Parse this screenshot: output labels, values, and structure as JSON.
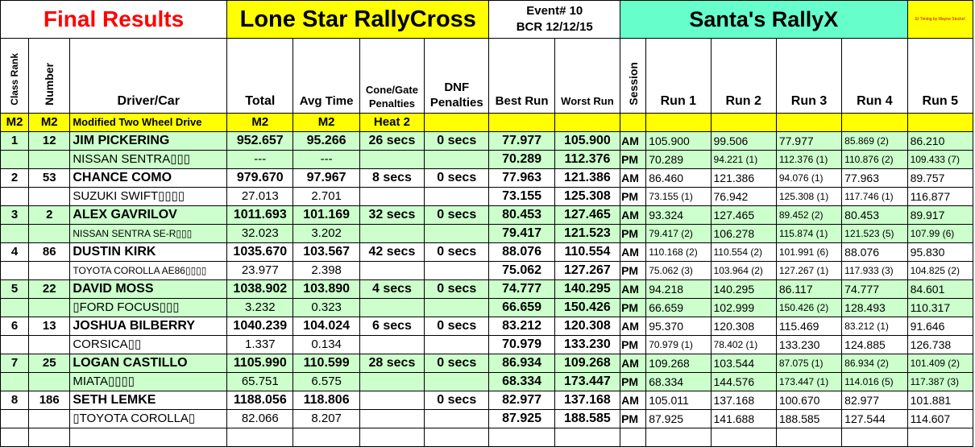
{
  "header": {
    "final_results": "Final Results",
    "series": "Lone Star RallyCross",
    "event_line1": "Event# 10",
    "event_line2": "BCR 12/12/15",
    "event_name": "Santa's RallyX",
    "timing_credit": "El Timing by Wayne Stockel"
  },
  "columns": {
    "class_rank": "Class Rank",
    "number": "Number",
    "driver_car": "Driver/Car",
    "total": "Total",
    "avg_time": "Avg Time",
    "cone_gate_1": "Cone/Gate",
    "cone_gate_2": "Penalties",
    "dnf_1": "DNF",
    "dnf_2": "Penalties",
    "best_run": "Best Run",
    "worst_run": "Worst Run",
    "session": "Session",
    "run1": "Run 1",
    "run2": "Run 2",
    "run3": "Run 3",
    "run4": "Run 4",
    "run5": "Run 5"
  },
  "class_row": {
    "rank": "M2",
    "number": "M2",
    "name": "Modified Two Wheel Drive",
    "total": "M2",
    "avg": "M2",
    "heat": "Heat 2"
  },
  "drivers": [
    {
      "rank": "1",
      "number": "12",
      "name": "JIM PICKERING",
      "car": "NISSAN SENTRA▯▯▯",
      "total": "952.657",
      "avg": "95.266",
      "cone": "26 secs",
      "dnf": "0 secs",
      "diff_total": "---",
      "diff_avg": "---",
      "am": {
        "best": "77.977",
        "worst": "105.900",
        "session": "AM",
        "runs": [
          "105.900",
          "99.506",
          "77.977",
          "85.869 (2)",
          "86.210"
        ]
      },
      "pm": {
        "best": "70.289",
        "worst": "112.376",
        "session": "PM",
        "runs": [
          "70.289",
          "94.221 (1)",
          "112.376 (1)",
          "110.876 (2)",
          "109.433 (7)"
        ]
      }
    },
    {
      "rank": "2",
      "number": "53",
      "name": "CHANCE COMO",
      "car": "SUZUKI SWIFT▯▯▯▯",
      "total": "979.670",
      "avg": "97.967",
      "cone": "8 secs",
      "dnf": "0 secs",
      "diff_total": "27.013",
      "diff_avg": "2.701",
      "am": {
        "best": "77.963",
        "worst": "121.386",
        "session": "AM",
        "runs": [
          "86.460",
          "121.386",
          "94.076 (1)",
          "77.963",
          "89.757"
        ]
      },
      "pm": {
        "best": "73.155",
        "worst": "125.308",
        "session": "PM",
        "runs": [
          "73.155 (1)",
          "76.942",
          "125.308 (1)",
          "117.746 (1)",
          "116.877"
        ]
      }
    },
    {
      "rank": "3",
      "number": "2",
      "name": "ALEX GAVRILOV",
      "car": "NISSAN SENTRA SE-R▯▯▯",
      "total": "1011.693",
      "avg": "101.169",
      "cone": "32 secs",
      "dnf": "0 secs",
      "diff_total": "32.023",
      "diff_avg": "3.202",
      "am": {
        "best": "80.453",
        "worst": "127.465",
        "session": "AM",
        "runs": [
          "93.324",
          "127.465",
          "89.452 (2)",
          "80.453",
          "89.917"
        ]
      },
      "pm": {
        "best": "79.417",
        "worst": "121.523",
        "session": "PM",
        "runs": [
          "79.417 (2)",
          "106.278",
          "115.874 (1)",
          "121.523 (5)",
          "107.99 (6)"
        ]
      }
    },
    {
      "rank": "4",
      "number": "86",
      "name": "DUSTIN KIRK",
      "car": "TOYOTA COROLLA AE86▯▯▯▯",
      "total": "1035.670",
      "avg": "103.567",
      "cone": "42 secs",
      "dnf": "0 secs",
      "diff_total": "23.977",
      "diff_avg": "2.398",
      "am": {
        "best": "88.076",
        "worst": "110.554",
        "session": "AM",
        "runs": [
          "110.168 (2)",
          "110.554 (2)",
          "101.991 (6)",
          "88.076",
          "95.830"
        ]
      },
      "pm": {
        "best": "75.062",
        "worst": "127.267",
        "session": "PM",
        "runs": [
          "75.062 (3)",
          "103.964 (2)",
          "127.267 (1)",
          "117.933 (3)",
          "104.825 (2)"
        ]
      }
    },
    {
      "rank": "5",
      "number": "22",
      "name": "DAVID MOSS",
      "car": "▯FORD FOCUS▯▯▯",
      "total": "1038.902",
      "avg": "103.890",
      "cone": "4 secs",
      "dnf": "0 secs",
      "diff_total": "3.232",
      "diff_avg": "0.323",
      "am": {
        "best": "74.777",
        "worst": "140.295",
        "session": "AM",
        "runs": [
          "94.218",
          "140.295",
          "86.117",
          "74.777",
          "84.601"
        ]
      },
      "pm": {
        "best": "66.659",
        "worst": "150.426",
        "session": "PM",
        "runs": [
          "66.659",
          "102.999",
          "150.426 (2)",
          "128.493",
          "110.317"
        ]
      }
    },
    {
      "rank": "6",
      "number": "13",
      "name": "JOSHUA BILBERRY",
      "car": "CORSICA▯▯",
      "total": "1040.239",
      "avg": "104.024",
      "cone": "6 secs",
      "dnf": "0 secs",
      "diff_total": "1.337",
      "diff_avg": "0.134",
      "am": {
        "best": "83.212",
        "worst": "120.308",
        "session": "AM",
        "runs": [
          "95.370",
          "120.308",
          "115.469",
          "83.212 (1)",
          "91.646"
        ]
      },
      "pm": {
        "best": "70.979",
        "worst": "133.230",
        "session": "PM",
        "runs": [
          "70.979 (1)",
          "78.402 (1)",
          "133.230",
          "124.885",
          "126.738"
        ]
      }
    },
    {
      "rank": "7",
      "number": "25",
      "name": "LOGAN CASTILLO",
      "car": "MIATA▯▯▯▯",
      "total": "1105.990",
      "avg": "110.599",
      "cone": "28 secs",
      "dnf": "0 secs",
      "diff_total": "65.751",
      "diff_avg": "6.575",
      "am": {
        "best": "86.934",
        "worst": "109.268",
        "session": "AM",
        "runs": [
          "109.268",
          "103.544",
          "87.075 (1)",
          "86.934 (2)",
          "101.409 (2)"
        ]
      },
      "pm": {
        "best": "68.334",
        "worst": "173.447",
        "session": "PM",
        "runs": [
          "68.334",
          "144.576",
          "173.447 (1)",
          "114.016 (5)",
          "117.387 (3)"
        ]
      }
    },
    {
      "rank": "8",
      "number": "186",
      "name": "SETH LEMKE",
      "car": "▯TOYOTA COROLLA▯",
      "total": "1188.056",
      "avg": "118.806",
      "cone": "",
      "dnf": "0 secs",
      "diff_total": "82.066",
      "diff_avg": "8.207",
      "am": {
        "best": "82.977",
        "worst": "137.168",
        "session": "AM",
        "runs": [
          "105.011",
          "137.168",
          "100.670",
          "82.977",
          "101.881"
        ]
      },
      "pm": {
        "best": "87.925",
        "worst": "188.585",
        "session": "PM",
        "runs": [
          "87.925",
          "141.688",
          "188.585",
          "127.544",
          "114.607"
        ]
      }
    }
  ]
}
